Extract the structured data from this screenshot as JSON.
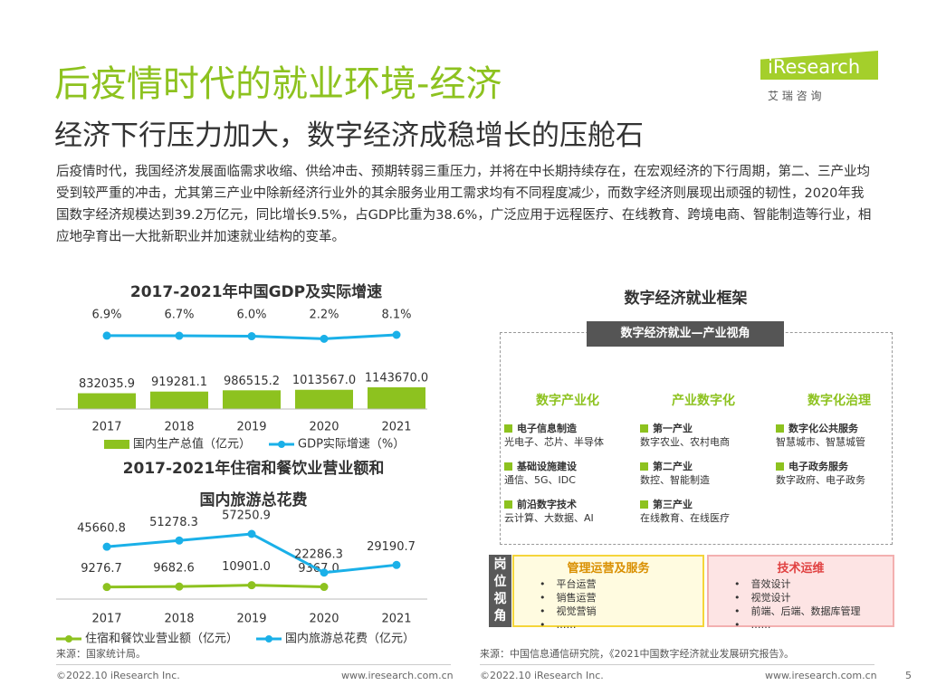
{
  "title": "后疫情时代的就业环境-经济",
  "subtitle": "经济下行压力加大，数字经济成稳增长的压舱石",
  "logo": {
    "brand": "iResearch",
    "tagline": "艾 瑞 咨 询"
  },
  "body": "后疫情时代，我国经济发展面临需求收缩、供给冲击、预期转弱三重压力，并将在中长期持续存在，在宏观经济的下行周期，第二、三产业均受到较严重的冲击，尤其第三产业中除新经济行业外的其余服务业用工需求均有不同程度减少，而数字经济则展现出顽强的韧性，2020年我国数字经济规模达到39.2万亿元，同比增长9.5%，占GDP比重为38.6%，广泛应用于远程医疗、在线教育、跨境电商、智能制造等行业，相应地孕育出一大批新职业并加速就业结构的变革。",
  "chart_data": [
    {
      "type": "bar_line",
      "title": "2017-2021年中国GDP及实际增速",
      "categories": [
        "2017",
        "2018",
        "2019",
        "2020",
        "2021"
      ],
      "series": [
        {
          "name": "国内生产总值（亿元）",
          "type": "bar",
          "color": "#8dc21f",
          "values": [
            832035.9,
            919281.1,
            986515.2,
            1013567.0,
            1143670.0
          ],
          "value_labels": [
            "832035.9",
            "919281.1",
            "986515.2",
            "1013567.0",
            "1143670.0"
          ]
        },
        {
          "name": "GDP实际增速（%）",
          "type": "line",
          "color": "#1ab0e8",
          "values": [
            6.9,
            6.7,
            6.0,
            2.2,
            8.1
          ],
          "value_labels": [
            "6.9%",
            "6.7%",
            "6.0%",
            "2.2%",
            "8.1%"
          ]
        }
      ]
    },
    {
      "type": "line",
      "title": [
        "2017-2021年住宿和餐饮业营业额和",
        "国内旅游总花费"
      ],
      "categories": [
        "2017",
        "2018",
        "2019",
        "2020",
        "2021"
      ],
      "series": [
        {
          "name": "住宿和餐饮业营业额（亿元）",
          "color": "#8dc21f",
          "values": [
            9276.7,
            9682.6,
            10901.0,
            9367.0,
            null
          ],
          "value_labels": [
            "9276.7",
            "9682.6",
            "10901.0",
            "9367.0",
            null
          ]
        },
        {
          "name": "国内旅游总花费（亿元）",
          "color": "#1ab0e8",
          "values": [
            45660.8,
            51278.3,
            57250.9,
            22286.3,
            29190.7
          ]
        }
      ]
    }
  ],
  "framework": {
    "title": "数字经济就业框架",
    "top": "数字经济就业—产业视角",
    "columns": [
      {
        "head": "数字产业化",
        "items": [
          {
            "label": "电子信息制造",
            "desc": "光电子、芯片、半导体"
          },
          {
            "label": "基础设施建设",
            "desc": "通信、5G、IDC"
          },
          {
            "label": "前沿数字技术",
            "desc": "云计算、大数据、AI"
          }
        ]
      },
      {
        "head": "产业数字化",
        "items": [
          {
            "label": "第一产业",
            "desc": "数字农业、农村电商"
          },
          {
            "label": "第二产业",
            "desc": "数控、智能制造"
          },
          {
            "label": "第三产业",
            "desc": "在线教育、在线医疗"
          }
        ]
      },
      {
        "head": "数字化治理",
        "items": [
          {
            "label": "数字化公共服务",
            "desc": "智慧城市、智慧城管"
          },
          {
            "label": "电子政务服务",
            "desc": "数字政府、电子政务"
          }
        ]
      }
    ],
    "side": "岗位视角",
    "roles": [
      {
        "head": "管理运营及服务",
        "items": [
          "平台运营",
          "销售运营",
          "视觉营销",
          "……"
        ]
      },
      {
        "head": "技术运维",
        "items": [
          "音效设计",
          "视觉设计",
          "前端、后端、数据库管理",
          "……"
        ]
      }
    ]
  },
  "source_left": "来源：国家统计局。",
  "source_right": "来源：中国信息通信研究院，《2021中国数字经济就业发展研究报告》。",
  "footer": {
    "copyright": "©2022.10 iResearch Inc.",
    "url": "www.iresearch.com.cn",
    "page": "5"
  }
}
